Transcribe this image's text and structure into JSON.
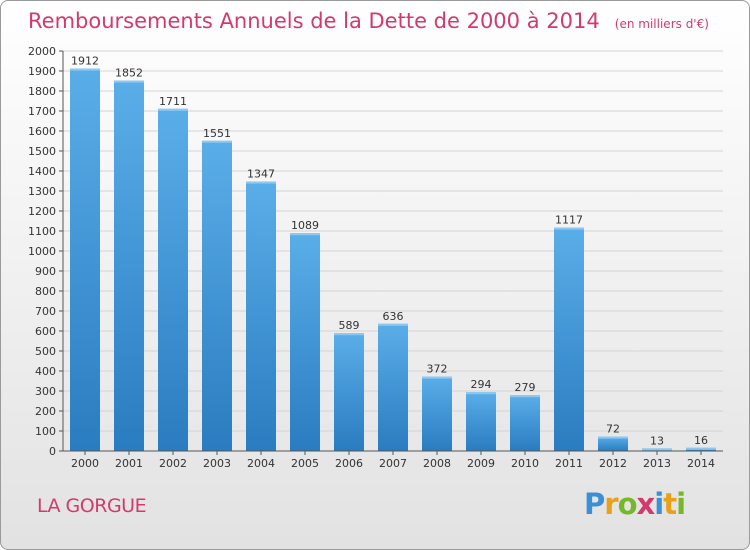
{
  "title": "Remboursements Annuels de la Dette de 2000 à 2014",
  "unit_note": "(en milliers d'€)",
  "location": "LA GORGUE",
  "logo": {
    "text": "Proxiti",
    "letters": [
      {
        "ch": "P",
        "color": "#3a8fd6"
      },
      {
        "ch": "r",
        "color": "#e8a21a"
      },
      {
        "ch": "o",
        "color": "#76b82a"
      },
      {
        "ch": "x",
        "color": "#d23a6e"
      },
      {
        "ch": "i",
        "color": "#3a8fd6"
      },
      {
        "ch": "t",
        "color": "#e8a21a"
      },
      {
        "ch": "i",
        "color": "#76b82a"
      }
    ]
  },
  "colors": {
    "bar_top": "#5aaee8",
    "bar_bottom": "#2a7cc0",
    "title": "#d23a6e"
  },
  "chart_data": {
    "type": "bar",
    "categories": [
      "2000",
      "2001",
      "2002",
      "2003",
      "2004",
      "2005",
      "2006",
      "2007",
      "2008",
      "2009",
      "2010",
      "2011",
      "2012",
      "2013",
      "2014"
    ],
    "values": [
      1912,
      1852,
      1711,
      1551,
      1347,
      1089,
      589,
      636,
      372,
      294,
      279,
      1117,
      72,
      13,
      16
    ],
    "ylim": [
      0,
      2000
    ],
    "yticks": [
      0,
      100,
      200,
      300,
      400,
      500,
      600,
      700,
      800,
      900,
      1000,
      1100,
      1200,
      1300,
      1400,
      1500,
      1600,
      1700,
      1800,
      1900,
      2000
    ],
    "grid": true,
    "xlabel": "",
    "ylabel": ""
  }
}
